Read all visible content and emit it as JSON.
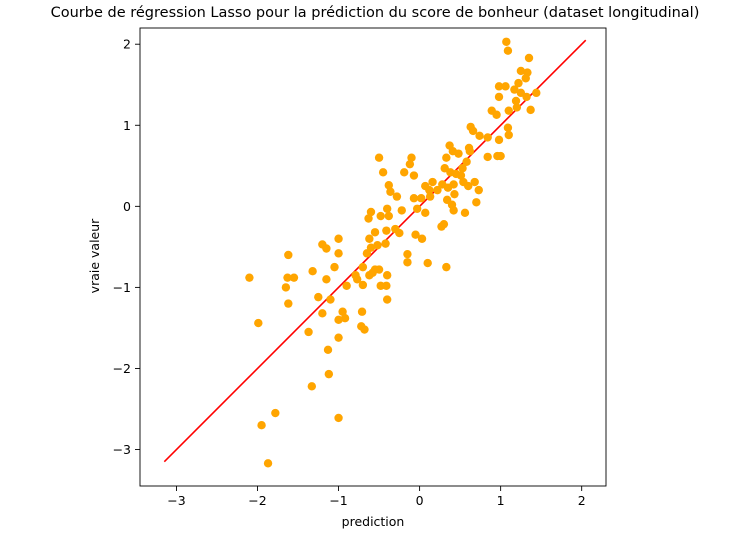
{
  "chart_data": {
    "type": "scatter",
    "title": "Courbe de régression Lasso pour la prédiction du score de bonheur (dataset longitudinal)",
    "xlabel": "prediction",
    "ylabel": "vraie valeur",
    "xlim": [
      -3.45,
      2.3
    ],
    "ylim": [
      -3.45,
      2.2
    ],
    "xticks": [
      -3,
      -2,
      -1,
      0,
      1,
      2
    ],
    "yticks": [
      -3,
      -2,
      -1,
      0,
      1,
      2
    ],
    "xtick_labels": [
      "−3",
      "−2",
      "−1",
      "0",
      "1",
      "2"
    ],
    "ytick_labels": [
      "−3",
      "−2",
      "−1",
      "0",
      "1",
      "2"
    ],
    "grid": false,
    "point_color": "#ffa500",
    "line_color": "#ff0000",
    "regression_line": {
      "x": [
        -3.15,
        2.05
      ],
      "y": [
        -3.15,
        2.05
      ]
    },
    "points": [
      [
        1.07,
        2.03
      ],
      [
        1.09,
        1.92
      ],
      [
        1.35,
        1.83
      ],
      [
        1.25,
        1.67
      ],
      [
        1.33,
        1.65
      ],
      [
        1.31,
        1.58
      ],
      [
        0.98,
        1.48
      ],
      [
        1.06,
        1.48
      ],
      [
        1.22,
        1.52
      ],
      [
        1.17,
        1.44
      ],
      [
        1.25,
        1.4
      ],
      [
        1.44,
        1.4
      ],
      [
        1.32,
        1.35
      ],
      [
        0.98,
        1.35
      ],
      [
        1.19,
        1.3
      ],
      [
        1.2,
        1.22
      ],
      [
        1.1,
        1.18
      ],
      [
        0.89,
        1.18
      ],
      [
        1.37,
        1.19
      ],
      [
        0.95,
        1.13
      ],
      [
        1.09,
        0.97
      ],
      [
        1.1,
        0.88
      ],
      [
        0.63,
        0.98
      ],
      [
        0.66,
        0.93
      ],
      [
        0.74,
        0.87
      ],
      [
        0.98,
        0.82
      ],
      [
        0.84,
        0.85
      ],
      [
        0.61,
        0.72
      ],
      [
        0.62,
        0.68
      ],
      [
        0.37,
        0.75
      ],
      [
        0.41,
        0.68
      ],
      [
        0.48,
        0.65
      ],
      [
        0.33,
        0.6
      ],
      [
        0.84,
        0.61
      ],
      [
        0.96,
        0.62
      ],
      [
        1.0,
        0.62
      ],
      [
        0.58,
        0.55
      ],
      [
        0.53,
        0.47
      ],
      [
        0.31,
        0.47
      ],
      [
        0.38,
        0.42
      ],
      [
        0.45,
        0.4
      ],
      [
        0.51,
        0.38
      ],
      [
        0.54,
        0.3
      ],
      [
        0.68,
        0.3
      ],
      [
        0.6,
        0.25
      ],
      [
        0.42,
        0.27
      ],
      [
        0.28,
        0.27
      ],
      [
        0.16,
        0.3
      ],
      [
        0.12,
        0.2
      ],
      [
        0.07,
        0.25
      ],
      [
        0.22,
        0.2
      ],
      [
        0.35,
        0.23
      ],
      [
        0.73,
        0.2
      ],
      [
        0.43,
        0.15
      ],
      [
        0.34,
        0.08
      ],
      [
        0.4,
        0.02
      ],
      [
        0.13,
        0.12
      ],
      [
        0.02,
        0.1
      ],
      [
        -0.07,
        0.1
      ],
      [
        0.7,
        0.05
      ],
      [
        0.42,
        -0.05
      ],
      [
        0.56,
        -0.08
      ],
      [
        0.07,
        -0.08
      ],
      [
        -0.03,
        -0.03
      ],
      [
        -0.5,
        0.6
      ],
      [
        -0.1,
        0.6
      ],
      [
        -0.12,
        0.52
      ],
      [
        -0.19,
        0.42
      ],
      [
        -0.45,
        0.42
      ],
      [
        -0.07,
        0.38
      ],
      [
        -0.38,
        0.26
      ],
      [
        -0.36,
        0.18
      ],
      [
        -0.28,
        0.12
      ],
      [
        -0.48,
        -0.12
      ],
      [
        -0.38,
        -0.12
      ],
      [
        -0.4,
        -0.03
      ],
      [
        -0.22,
        -0.05
      ],
      [
        -0.63,
        -0.15
      ],
      [
        -0.6,
        -0.07
      ],
      [
        -0.3,
        -0.28
      ],
      [
        -0.25,
        -0.33
      ],
      [
        -0.41,
        -0.3
      ],
      [
        -0.55,
        -0.32
      ],
      [
        -0.05,
        -0.35
      ],
      [
        0.03,
        -0.4
      ],
      [
        0.27,
        -0.25
      ],
      [
        0.3,
        -0.22
      ],
      [
        -0.62,
        -0.4
      ],
      [
        -0.52,
        -0.48
      ],
      [
        -0.42,
        -0.46
      ],
      [
        -0.6,
        -0.51
      ],
      [
        -0.15,
        -0.59
      ],
      [
        -0.15,
        -0.69
      ],
      [
        0.1,
        -0.7
      ],
      [
        0.33,
        -0.75
      ],
      [
        -1.0,
        -0.4
      ],
      [
        -1.2,
        -0.47
      ],
      [
        -1.15,
        -0.52
      ],
      [
        -1.0,
        -0.58
      ],
      [
        -0.65,
        -0.58
      ],
      [
        -0.7,
        -0.75
      ],
      [
        -0.55,
        -0.78
      ],
      [
        -0.5,
        -0.78
      ],
      [
        -0.58,
        -0.82
      ],
      [
        -0.62,
        -0.85
      ],
      [
        -0.79,
        -0.85
      ],
      [
        -0.77,
        -0.9
      ],
      [
        -0.4,
        -0.85
      ],
      [
        -1.05,
        -0.75
      ],
      [
        -1.32,
        -0.8
      ],
      [
        -1.55,
        -0.88
      ],
      [
        -1.63,
        -0.88
      ],
      [
        -1.65,
        -1.0
      ],
      [
        -1.62,
        -0.6
      ],
      [
        -2.1,
        -0.88
      ],
      [
        -1.15,
        -0.9
      ],
      [
        -0.9,
        -0.98
      ],
      [
        -0.7,
        -0.97
      ],
      [
        -0.48,
        -0.98
      ],
      [
        -0.41,
        -0.98
      ],
      [
        -1.1,
        -1.15
      ],
      [
        -0.4,
        -1.15
      ],
      [
        -1.25,
        -1.12
      ],
      [
        -1.62,
        -1.2
      ],
      [
        -1.2,
        -1.32
      ],
      [
        -0.95,
        -1.3
      ],
      [
        -0.92,
        -1.38
      ],
      [
        -0.71,
        -1.3
      ],
      [
        -1.0,
        -1.4
      ],
      [
        -0.72,
        -1.48
      ],
      [
        -0.68,
        -1.52
      ],
      [
        -1.37,
        -1.55
      ],
      [
        -1.0,
        -1.62
      ],
      [
        -1.13,
        -1.77
      ],
      [
        -1.99,
        -1.44
      ],
      [
        -1.12,
        -2.07
      ],
      [
        -1.33,
        -2.22
      ],
      [
        -1.78,
        -2.55
      ],
      [
        -1.95,
        -2.7
      ],
      [
        -1.0,
        -2.61
      ],
      [
        -1.87,
        -3.17
      ]
    ]
  }
}
